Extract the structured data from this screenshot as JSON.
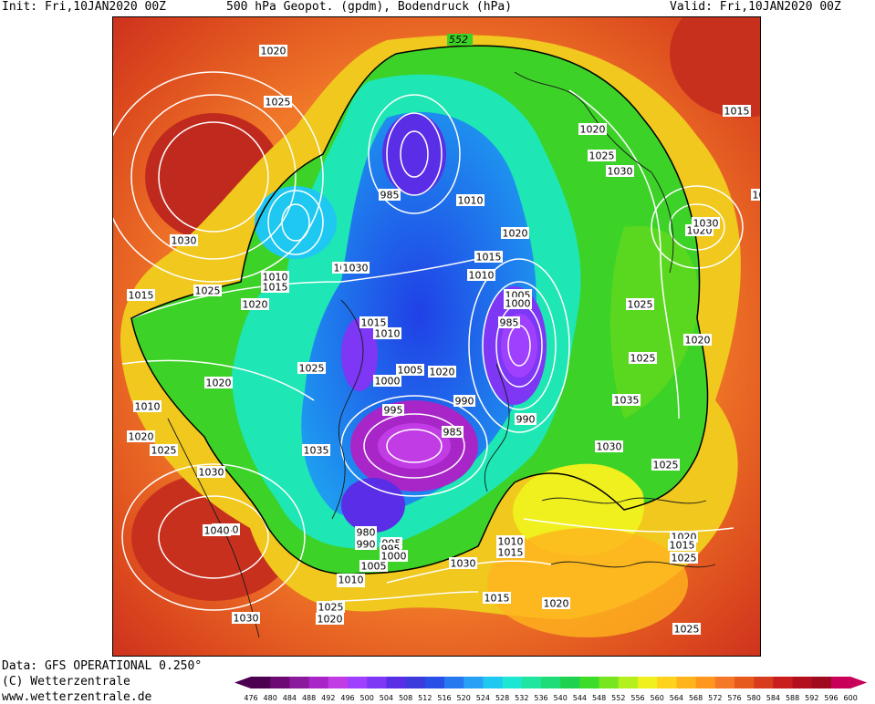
{
  "header": {
    "init": "Init: Fri,10JAN2020 00Z",
    "title": "500 hPa Geopot. (gpdm), Bodendruck (hPa)",
    "valid": "Valid: Fri,10JAN2020 00Z"
  },
  "footer": {
    "data_line": "Data: GFS OPERATIONAL 0.250°",
    "copyright": "(C) Wetterzentrale",
    "url": "www.wetterzentrale.de"
  },
  "legend": {
    "values": [
      "476",
      "480",
      "484",
      "488",
      "492",
      "496",
      "500",
      "504",
      "508",
      "512",
      "516",
      "520",
      "524",
      "528",
      "532",
      "536",
      "540",
      "544",
      "548",
      "552",
      "556",
      "560",
      "564",
      "568",
      "572",
      "576",
      "580",
      "584",
      "588",
      "592",
      "596",
      "600"
    ],
    "colors": [
      "#4b0050",
      "#6e0a73",
      "#8c1a9c",
      "#a826c8",
      "#c23ce6",
      "#a040ff",
      "#7d37f5",
      "#5a2de6",
      "#3c3cdc",
      "#2850e6",
      "#2878f0",
      "#28a0f5",
      "#1ec8f0",
      "#1ee6d2",
      "#1ee6a0",
      "#1edc78",
      "#1ed250",
      "#3cdc28",
      "#78e61e",
      "#b4f01e",
      "#f0f01e",
      "#ffd21e",
      "#ffb41e",
      "#ff961e",
      "#f57828",
      "#e65a1e",
      "#d73c1e",
      "#c81e1e",
      "#b40f1e",
      "#a00a1e",
      "#c8005a"
    ]
  },
  "map": {
    "height_contour_label": "552",
    "pressure_labels": [
      "1020",
      "1025",
      "1030",
      "1015",
      "1025",
      "1010",
      "1015",
      "1020",
      "1025",
      "1030",
      "1020",
      "1010",
      "1020",
      "1025",
      "1030",
      "1040",
      "1030",
      "1020",
      "1025",
      "1010",
      "1015",
      "985",
      "1010",
      "1020",
      "1015",
      "1010",
      "1030",
      "1005",
      "1000",
      "995",
      "985",
      "1015",
      "1010",
      "1005",
      "1000",
      "1020",
      "990",
      "985",
      "990",
      "995",
      "980",
      "990",
      "995",
      "1000",
      "1005",
      "1010",
      "1020",
      "1025",
      "1030",
      "1010",
      "1015",
      "1020",
      "1025",
      "1025",
      "1035",
      "1030",
      "1025",
      "1020",
      "1025",
      "1020",
      "1015",
      "1025",
      "1030",
      "1035",
      "1020",
      "1040",
      "1015",
      "1030",
      "10"
    ]
  }
}
